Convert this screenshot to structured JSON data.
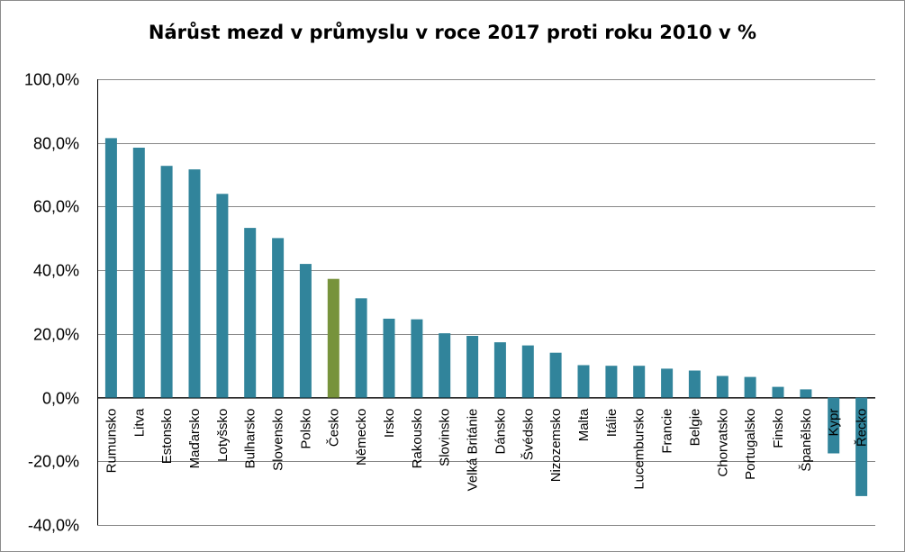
{
  "chart_data": {
    "type": "bar",
    "title": "Nárůst mezd v průmyslu v roce 2017 proti roku 2010 v %",
    "xlabel": "",
    "ylabel": "",
    "ylim": [
      -40,
      100
    ],
    "yticks": [
      -40,
      -20,
      0,
      20,
      40,
      60,
      80,
      100
    ],
    "ytick_labels": [
      "-40,0%",
      "-20,0%",
      "0,0%",
      "20,0%",
      "40,0%",
      "60,0%",
      "80,0%",
      "100,0%"
    ],
    "grid": true,
    "legend": "none",
    "categories": [
      "Rumunsko",
      "Litva",
      "Estonsko",
      "Maďarsko",
      "Lotyšsko",
      "Bulharsko",
      "Slovensko",
      "Polsko",
      "Česko",
      "Německo",
      "Irsko",
      "Rakousko",
      "Slovinsko",
      "Velká Británie",
      "Dánsko",
      "Švédsko",
      "Nizozemsko",
      "Malta",
      "Itálie",
      "Lucembursko",
      "Francie",
      "Belgie",
      "Chorvatsko",
      "Portugalsko",
      "Finsko",
      "Španělsko",
      "Kypr",
      "Řecko"
    ],
    "values": [
      81.5,
      78.5,
      72.8,
      71.7,
      64.0,
      53.3,
      50.1,
      42.0,
      37.3,
      31.2,
      24.8,
      24.6,
      20.2,
      19.4,
      17.4,
      16.4,
      14.1,
      10.2,
      10.0,
      10.0,
      9.1,
      8.5,
      6.8,
      6.5,
      3.4,
      2.6,
      -17.5,
      -30.9
    ],
    "colors": {
      "default": "#31849b",
      "highlight": "#77933c",
      "grid": "#878787",
      "axis": "#000000"
    },
    "highlight_category": "Česko"
  }
}
